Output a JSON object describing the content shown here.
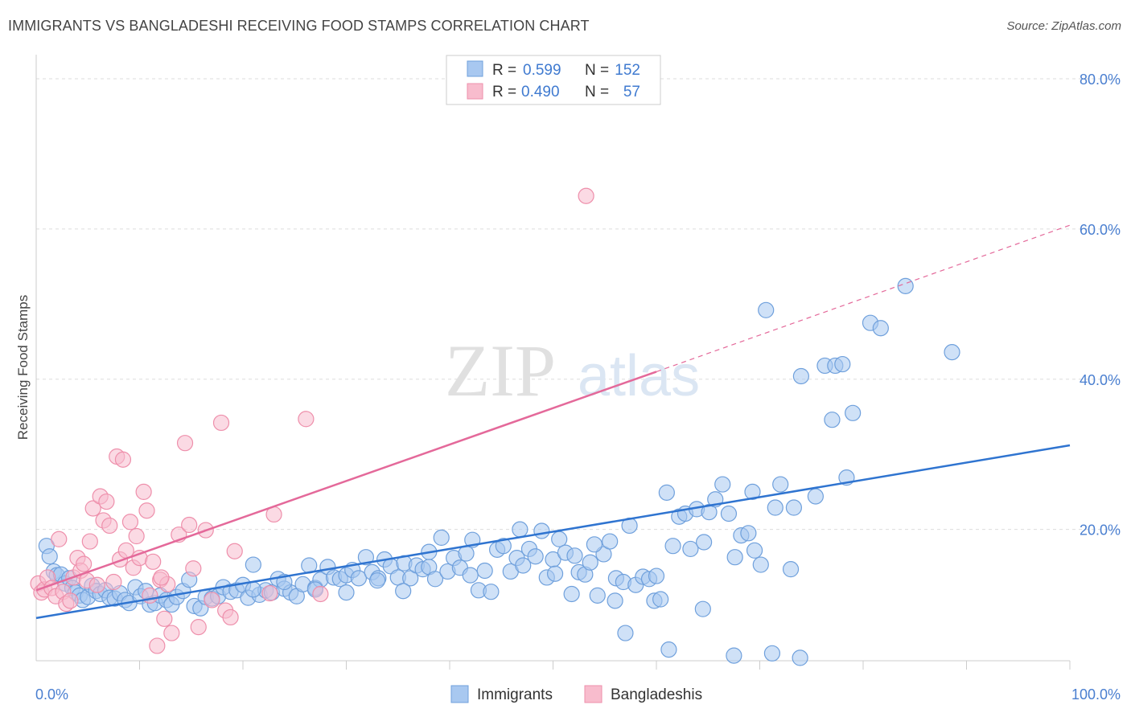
{
  "title": "IMMIGRANTS VS BANGLADESHI RECEIVING FOOD STAMPS CORRELATION CHART",
  "source": "Source: ZipAtlas.com",
  "watermark": {
    "zip": "ZIP",
    "atlas": "atlas"
  },
  "colors": {
    "immigrants_fill": "#a8c8f0",
    "immigrants_stroke": "#6fa0dc",
    "immigrants_line": "#2f74d0",
    "bangladeshis_fill": "#f8bccd",
    "bangladeshis_stroke": "#ee8fab",
    "bangladeshis_line": "#e4699a",
    "axis_text": "#4a7fd0",
    "grid": "#dddddd"
  },
  "legend_top": {
    "rows": [
      {
        "r_label": "R =",
        "r_value": "0.599",
        "n_label": "N =",
        "n_value": "152"
      },
      {
        "r_label": "R =",
        "r_value": "0.490",
        "n_label": "N =",
        "n_value": "57"
      }
    ]
  },
  "chart_data": {
    "type": "scatter",
    "title": "IMMIGRANTS VS BANGLADESHI RECEIVING FOOD STAMPS CORRELATION CHART",
    "xlabel": "",
    "ylabel": "Receiving Food Stamps",
    "xlim": [
      0,
      100
    ],
    "ylim": [
      0,
      80
    ],
    "x_tick_labels": [
      "0.0%",
      "100.0%"
    ],
    "y_tick_labels": [
      "20.0%",
      "40.0%",
      "60.0%",
      "80.0%"
    ],
    "y_ticks": [
      20,
      40,
      60,
      80
    ],
    "grid": true,
    "legend_position": "bottom-center",
    "series": [
      {
        "name": "Immigrants",
        "r": 0.599,
        "n": 152,
        "trend": {
          "x": [
            0,
            100
          ],
          "y": [
            8.2,
            31.2
          ],
          "style": "solid"
        },
        "points": [
          [
            1.0,
            17.8
          ],
          [
            1.3,
            16.4
          ],
          [
            1.7,
            14.4
          ],
          [
            2.0,
            13.9
          ],
          [
            2.4,
            14.0
          ],
          [
            2.8,
            12.8
          ],
          [
            3.2,
            13.5
          ],
          [
            3.5,
            12.2
          ],
          [
            3.8,
            11.6
          ],
          [
            4.2,
            11.2
          ],
          [
            4.5,
            10.6
          ],
          [
            5.0,
            11.0
          ],
          [
            5.4,
            12.5
          ],
          [
            5.8,
            11.8
          ],
          [
            6.2,
            11.4
          ],
          [
            6.7,
            11.9
          ],
          [
            7.1,
            10.9
          ],
          [
            7.6,
            10.8
          ],
          [
            8.1,
            11.5
          ],
          [
            8.6,
            10.6
          ],
          [
            9.0,
            10.2
          ],
          [
            9.6,
            12.3
          ],
          [
            10.1,
            11.1
          ],
          [
            10.6,
            11.8
          ],
          [
            11.0,
            10.0
          ],
          [
            11.5,
            10.2
          ],
          [
            12.0,
            11.2
          ],
          [
            12.6,
            10.6
          ],
          [
            13.1,
            10.0
          ],
          [
            13.6,
            11.0
          ],
          [
            14.2,
            11.8
          ],
          [
            14.8,
            13.3
          ],
          [
            15.3,
            9.8
          ],
          [
            15.9,
            9.5
          ],
          [
            16.4,
            11.0
          ],
          [
            17.0,
            10.8
          ],
          [
            17.6,
            11.1
          ],
          [
            18.1,
            12.3
          ],
          [
            18.8,
            11.7
          ],
          [
            19.4,
            11.9
          ],
          [
            20.0,
            12.6
          ],
          [
            20.5,
            10.9
          ],
          [
            21.0,
            15.3
          ],
          [
            21.6,
            11.3
          ],
          [
            22.2,
            11.9
          ],
          [
            22.8,
            11.6
          ],
          [
            23.4,
            13.4
          ],
          [
            24.0,
            12.1
          ],
          [
            24.6,
            11.6
          ],
          [
            25.2,
            11.1
          ],
          [
            25.8,
            12.7
          ],
          [
            26.4,
            15.2
          ],
          [
            27.0,
            12.2
          ],
          [
            27.5,
            13.3
          ],
          [
            28.2,
            15.0
          ],
          [
            28.8,
            13.6
          ],
          [
            29.4,
            13.4
          ],
          [
            30.0,
            13.9
          ],
          [
            30.6,
            14.6
          ],
          [
            31.2,
            13.5
          ],
          [
            31.9,
            16.3
          ],
          [
            32.5,
            14.3
          ],
          [
            33.1,
            13.5
          ],
          [
            33.7,
            16.0
          ],
          [
            34.3,
            15.1
          ],
          [
            35.0,
            13.6
          ],
          [
            35.6,
            15.5
          ],
          [
            36.2,
            13.5
          ],
          [
            36.8,
            15.2
          ],
          [
            37.4,
            14.7
          ],
          [
            38.0,
            15.0
          ],
          [
            38.6,
            13.4
          ],
          [
            39.2,
            18.9
          ],
          [
            39.8,
            14.4
          ],
          [
            40.4,
            16.2
          ],
          [
            41.0,
            14.9
          ],
          [
            41.6,
            16.8
          ],
          [
            42.2,
            18.6
          ],
          [
            42.8,
            11.9
          ],
          [
            43.4,
            14.5
          ],
          [
            44.0,
            11.7
          ],
          [
            44.6,
            17.3
          ],
          [
            45.2,
            17.8
          ],
          [
            45.9,
            14.4
          ],
          [
            46.5,
            16.2
          ],
          [
            47.1,
            15.2
          ],
          [
            47.7,
            17.4
          ],
          [
            48.3,
            16.4
          ],
          [
            48.9,
            19.8
          ],
          [
            49.4,
            13.6
          ],
          [
            50.0,
            16.0
          ],
          [
            50.6,
            18.7
          ],
          [
            51.2,
            16.9
          ],
          [
            51.8,
            11.4
          ],
          [
            52.5,
            14.3
          ],
          [
            53.1,
            14.0
          ],
          [
            53.6,
            15.6
          ],
          [
            54.3,
            11.2
          ],
          [
            54.9,
            16.7
          ],
          [
            55.5,
            18.4
          ],
          [
            56.1,
            13.5
          ],
          [
            56.8,
            13.0
          ],
          [
            57.4,
            20.5
          ],
          [
            58.0,
            12.6
          ],
          [
            58.7,
            13.7
          ],
          [
            59.3,
            13.4
          ],
          [
            59.8,
            10.5
          ],
          [
            60.4,
            10.7
          ],
          [
            61.0,
            24.9
          ],
          [
            61.6,
            17.8
          ],
          [
            62.2,
            21.7
          ],
          [
            62.8,
            22.1
          ],
          [
            63.3,
            17.4
          ],
          [
            63.9,
            22.7
          ],
          [
            64.6,
            18.3
          ],
          [
            65.1,
            22.3
          ],
          [
            65.7,
            24.0
          ],
          [
            66.4,
            26.0
          ],
          [
            67.0,
            22.1
          ],
          [
            67.6,
            16.3
          ],
          [
            68.2,
            19.2
          ],
          [
            68.9,
            19.5
          ],
          [
            69.5,
            17.2
          ],
          [
            70.1,
            15.3
          ],
          [
            70.6,
            49.2
          ],
          [
            71.5,
            22.9
          ],
          [
            72.0,
            26.0
          ],
          [
            73.0,
            14.7
          ],
          [
            73.3,
            22.9
          ],
          [
            74.0,
            40.4
          ],
          [
            75.4,
            24.4
          ],
          [
            76.3,
            41.8
          ],
          [
            77.0,
            34.6
          ],
          [
            77.3,
            41.8
          ],
          [
            78.0,
            42.0
          ],
          [
            78.4,
            26.9
          ],
          [
            79.0,
            35.5
          ],
          [
            80.7,
            47.5
          ],
          [
            81.7,
            46.8
          ],
          [
            84.1,
            52.4
          ],
          [
            88.6,
            43.6
          ],
          [
            52.1,
            16.5
          ],
          [
            54.0,
            18.0
          ],
          [
            56.0,
            10.5
          ],
          [
            61.2,
            4.0
          ],
          [
            64.5,
            9.4
          ],
          [
            67.5,
            3.2
          ],
          [
            69.3,
            25.0
          ],
          [
            71.2,
            3.5
          ],
          [
            73.9,
            2.9
          ],
          [
            57.0,
            6.2
          ],
          [
            60.0,
            13.8
          ],
          [
            50.2,
            14.1
          ],
          [
            46.8,
            20.0
          ],
          [
            42.0,
            13.9
          ],
          [
            38.0,
            17.0
          ],
          [
            35.5,
            11.8
          ],
          [
            33.0,
            13.2
          ],
          [
            30.0,
            11.6
          ],
          [
            27.0,
            12.0
          ],
          [
            24.0,
            13.0
          ],
          [
            21.0,
            12.0
          ]
        ]
      },
      {
        "name": "Bangladeshis",
        "r": 0.49,
        "n": 57,
        "trend": {
          "x": [
            0,
            60
          ],
          "y": [
            11.9,
            41.0
          ],
          "style": "solid",
          "dashed_extension_to": [
            100,
            60.5
          ]
        },
        "points": [
          [
            0.2,
            12.8
          ],
          [
            0.5,
            11.6
          ],
          [
            0.8,
            12.0
          ],
          [
            1.1,
            13.6
          ],
          [
            1.5,
            12.2
          ],
          [
            1.9,
            11.1
          ],
          [
            2.2,
            18.7
          ],
          [
            2.6,
            11.7
          ],
          [
            2.9,
            10.1
          ],
          [
            3.3,
            10.5
          ],
          [
            3.6,
            13.6
          ],
          [
            4.0,
            16.2
          ],
          [
            4.3,
            14.5
          ],
          [
            4.6,
            15.4
          ],
          [
            4.9,
            13.2
          ],
          [
            5.2,
            18.4
          ],
          [
            5.5,
            22.8
          ],
          [
            5.9,
            12.6
          ],
          [
            6.2,
            24.4
          ],
          [
            6.5,
            21.2
          ],
          [
            6.8,
            23.7
          ],
          [
            7.1,
            20.5
          ],
          [
            7.5,
            13.0
          ],
          [
            7.8,
            29.7
          ],
          [
            8.1,
            16.0
          ],
          [
            8.4,
            29.3
          ],
          [
            8.7,
            17.2
          ],
          [
            9.1,
            21.0
          ],
          [
            9.4,
            14.9
          ],
          [
            9.7,
            19.1
          ],
          [
            10.0,
            16.2
          ],
          [
            10.4,
            25.0
          ],
          [
            10.7,
            22.5
          ],
          [
            11.0,
            11.2
          ],
          [
            11.3,
            15.7
          ],
          [
            11.7,
            4.5
          ],
          [
            12.0,
            13.3
          ],
          [
            12.4,
            8.1
          ],
          [
            12.7,
            12.7
          ],
          [
            13.1,
            6.2
          ],
          [
            13.8,
            19.3
          ],
          [
            14.4,
            31.5
          ],
          [
            14.8,
            20.6
          ],
          [
            15.2,
            14.8
          ],
          [
            15.7,
            7.0
          ],
          [
            16.4,
            19.9
          ],
          [
            17.0,
            10.6
          ],
          [
            17.9,
            34.2
          ],
          [
            18.3,
            9.2
          ],
          [
            18.8,
            8.3
          ],
          [
            19.2,
            17.1
          ],
          [
            22.6,
            11.5
          ],
          [
            23.0,
            22.0
          ],
          [
            26.1,
            34.7
          ],
          [
            27.5,
            11.4
          ],
          [
            53.2,
            64.4
          ],
          [
            12.1,
            13.6
          ]
        ]
      }
    ]
  },
  "legend_bottom": {
    "items": [
      "Immigrants",
      "Bangladeshis"
    ]
  }
}
